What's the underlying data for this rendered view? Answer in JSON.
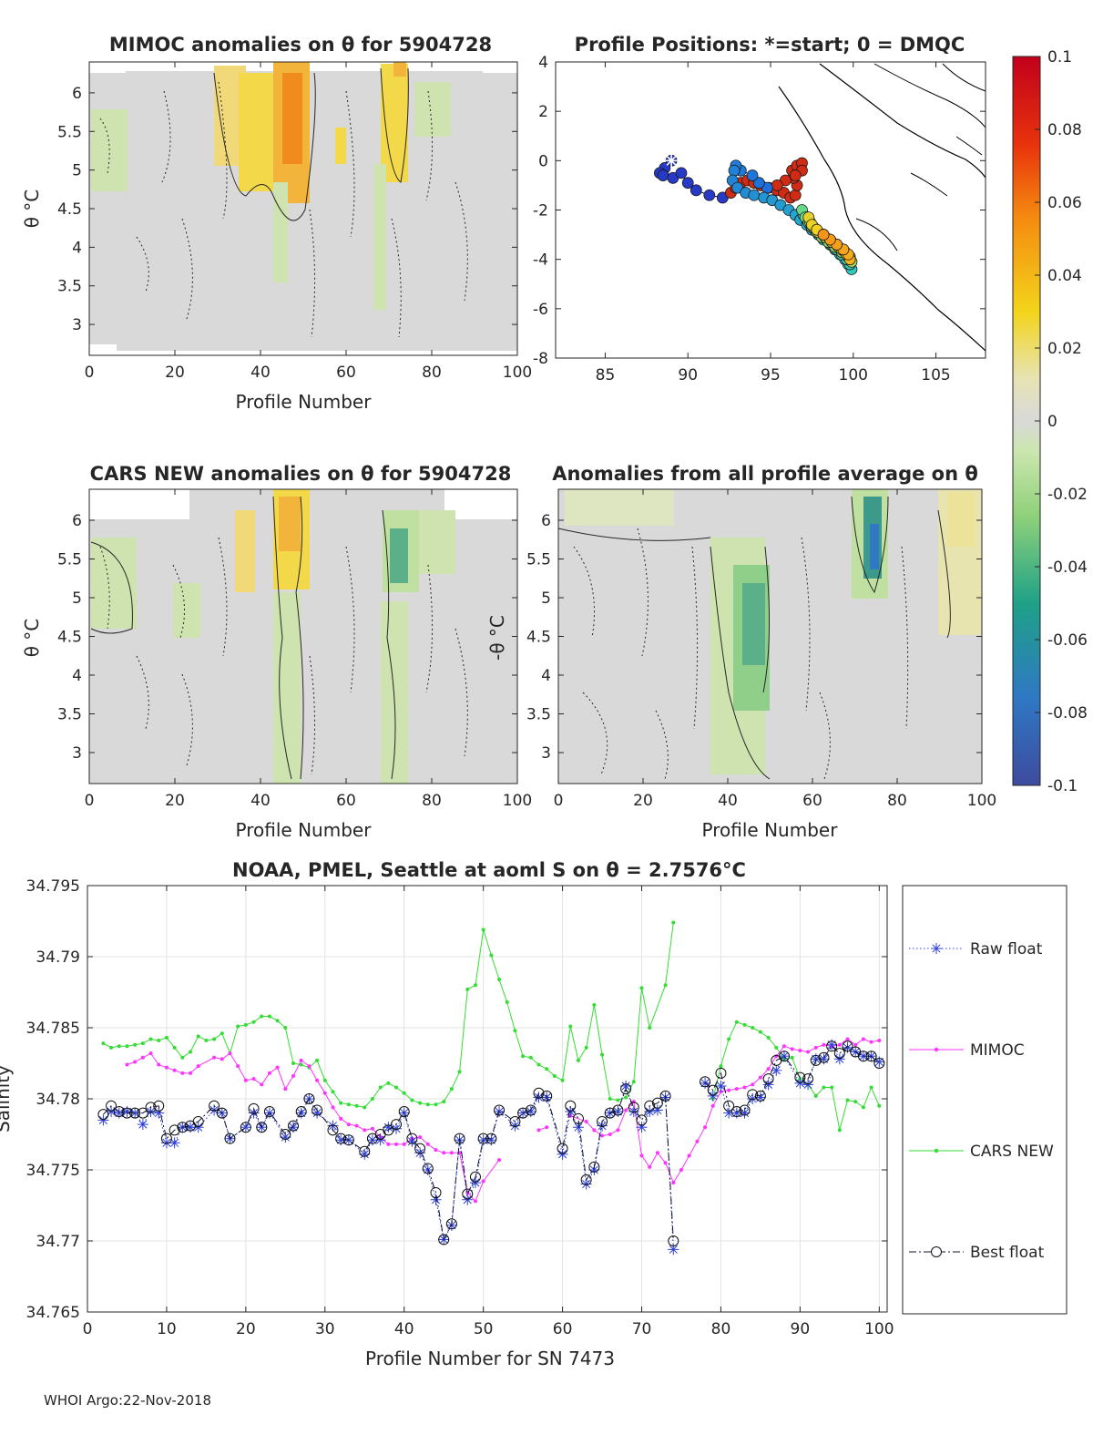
{
  "footer": "WHOI Argo:22-Nov-2018",
  "colorbar": {
    "ticks": [
      "0.1",
      "0.08",
      "0.06",
      "0.04",
      "0.02",
      "0",
      "-0.02",
      "-0.04",
      "-0.06",
      "-0.08",
      "-0.1"
    ],
    "range": [
      -0.1,
      0.1
    ]
  },
  "chart_data": [
    {
      "id": "mimoc",
      "type": "heatmap",
      "title": "MIMOC anomalies on θ  for 5904728",
      "xlabel": "Profile Number",
      "ylabel": "θ °C",
      "xlim": [
        0,
        100
      ],
      "ylim": [
        2.6,
        6.4
      ],
      "xticks": [
        "0",
        "20",
        "40",
        "60",
        "80",
        "100"
      ],
      "yticks": [
        "3",
        "3.5",
        "4",
        "4.5",
        "5",
        "5.5",
        "6"
      ]
    },
    {
      "id": "positions",
      "type": "scatter",
      "title": "Profile Positions: *=start; 0 = DMQC",
      "xlim": [
        82,
        108
      ],
      "ylim": [
        -8,
        4
      ],
      "xticks": [
        "85",
        "90",
        "95",
        "100",
        "105"
      ],
      "yticks": [
        "4",
        "2",
        "0",
        "-2",
        "-4",
        "-6",
        "-8"
      ],
      "lon": [
        89.0,
        88.6,
        88.3,
        88.5,
        89.1,
        89.6,
        90.0,
        90.5,
        91.3,
        92.1,
        92.6,
        92.9,
        93.2,
        93.6,
        94.0,
        94.4,
        94.9,
        95.4,
        95.8,
        96.2,
        96.5,
        96.6,
        96.4,
        96.3,
        96.6,
        96.9,
        96.9,
        96.5,
        95.9,
        95.4,
        94.8,
        94.3,
        93.9,
        93.2,
        92.9,
        92.8,
        92.7,
        93.0,
        93.5,
        94.0,
        94.6,
        95.1,
        95.6,
        96.1,
        96.5,
        96.8,
        97.2,
        97.5,
        97.9,
        98.2,
        98.6,
        98.9,
        99.2,
        99.5,
        99.7,
        99.9,
        99.8,
        99.6,
        99.3,
        99.0,
        98.7,
        98.4,
        98.1,
        97.7,
        97.4,
        97.2,
        97.0,
        96.9,
        97.1,
        97.3,
        97.5,
        97.8,
        98.1,
        98.5,
        98.9,
        99.3,
        99.7,
        99.9,
        99.8,
        99.5,
        99.1,
        98.7,
        98.3,
        97.9,
        97.6,
        97.4,
        97.3,
        97.5,
        97.8,
        98.2,
        98.6,
        99.0,
        99.3,
        99.6,
        99.8,
        99.7,
        99.4,
        99.0,
        98.6,
        98.2
      ],
      "lat": [
        0.0,
        -0.3,
        -0.5,
        -0.6,
        -0.7,
        -0.5,
        -0.9,
        -1.2,
        -1.4,
        -1.5,
        -1.3,
        -1.1,
        -0.9,
        -0.8,
        -0.9,
        -1.0,
        -1.1,
        -1.2,
        -1.3,
        -1.5,
        -1.4,
        -1.0,
        -0.7,
        -0.4,
        -0.2,
        -0.1,
        -0.4,
        -0.6,
        -0.8,
        -1.0,
        -1.1,
        -0.9,
        -0.6,
        -0.4,
        -0.2,
        -0.4,
        -0.8,
        -1.1,
        -1.3,
        -1.4,
        -1.5,
        -1.6,
        -1.8,
        -2.0,
        -2.2,
        -2.4,
        -2.6,
        -2.8,
        -3.0,
        -3.2,
        -3.4,
        -3.6,
        -3.8,
        -4.0,
        -4.2,
        -4.4,
        -4.2,
        -4.0,
        -3.8,
        -3.6,
        -3.4,
        -3.2,
        -3.0,
        -2.8,
        -2.6,
        -2.4,
        -2.2,
        -2.0,
        -2.3,
        -2.5,
        -2.7,
        -2.9,
        -3.1,
        -3.3,
        -3.5,
        -3.7,
        -3.9,
        -4.1,
        -3.9,
        -3.7,
        -3.5,
        -3.3,
        -3.1,
        -2.9,
        -2.7,
        -2.5,
        -2.3,
        -2.6,
        -2.8,
        -3.0,
        -3.2,
        -3.4,
        -3.6,
        -3.8,
        -4.0,
        -3.8,
        -3.6,
        -3.4,
        -3.2,
        -3.0
      ]
    },
    {
      "id": "cars",
      "type": "heatmap",
      "title": "CARS NEW anomalies on θ for 5904728",
      "xlabel": "Profile Number",
      "ylabel": "θ °C",
      "xlim": [
        0,
        100
      ],
      "ylim": [
        2.6,
        6.4
      ],
      "xticks": [
        "0",
        "20",
        "40",
        "60",
        "80",
        "100"
      ],
      "yticks": [
        "3",
        "3.5",
        "4",
        "4.5",
        "5",
        "5.5",
        "6"
      ]
    },
    {
      "id": "allavg",
      "type": "heatmap",
      "title": "Anomalies from all profile average on θ",
      "xlabel": "Profile Number",
      "ylabel": "-θ °C",
      "xlim": [
        0,
        100
      ],
      "ylim": [
        2.6,
        6.4
      ],
      "xticks": [
        "0",
        "20",
        "40",
        "60",
        "80",
        "100"
      ],
      "yticks": [
        "3",
        "3.5",
        "4",
        "4.5",
        "5",
        "5.5",
        "6"
      ]
    },
    {
      "id": "salinity",
      "type": "line",
      "title": "NOAA, PMEL, Seattle at aoml S on θ = 2.7576°C",
      "xlabel": "Profile Number for SN 7473",
      "ylabel": "Salinity",
      "xlim": [
        0,
        101
      ],
      "ylim": [
        34.765,
        34.795
      ],
      "xticks": [
        "0",
        "10",
        "20",
        "30",
        "40",
        "50",
        "60",
        "70",
        "80",
        "90",
        "100"
      ],
      "yticks": [
        "34.765",
        "34.77",
        "34.775",
        "34.78",
        "34.785",
        "34.79",
        "34.795"
      ],
      "series": [
        {
          "name": "Raw float",
          "x": [
            2,
            3,
            4,
            5,
            6,
            7,
            8,
            9,
            10,
            11,
            12,
            13,
            14,
            16,
            17,
            18,
            20,
            21,
            22,
            23,
            25,
            26,
            27,
            28,
            29,
            31,
            32,
            33,
            35,
            36,
            37,
            38,
            39,
            40,
            41,
            42,
            43,
            44,
            45,
            46,
            47,
            48,
            49,
            50,
            51,
            52,
            54,
            55,
            56,
            57,
            58,
            60,
            61,
            62,
            63,
            64,
            65,
            66,
            67,
            68,
            69,
            70,
            71,
            72,
            73,
            74,
            78,
            79,
            80,
            81,
            82,
            83,
            84,
            85,
            86,
            87,
            88,
            90,
            91,
            92,
            93,
            94,
            95,
            96,
            97,
            98,
            99,
            100
          ],
          "y": [
            34.7785,
            34.7791,
            34.779,
            34.7791,
            34.779,
            34.7782,
            34.7791,
            34.779,
            34.7769,
            34.7769,
            34.778,
            34.778,
            34.778,
            34.7792,
            34.779,
            34.7772,
            34.778,
            34.779,
            34.778,
            34.779,
            34.7773,
            34.778,
            34.779,
            34.78,
            34.779,
            34.7781,
            34.7771,
            34.7771,
            34.7761,
            34.7771,
            34.7771,
            34.778,
            34.7779,
            34.779,
            34.777,
            34.7762,
            34.775,
            34.7729,
            34.7701,
            34.7711,
            34.7771,
            34.7729,
            34.7741,
            34.7771,
            34.7771,
            34.7791,
            34.7781,
            34.779,
            34.7791,
            34.7801,
            34.7801,
            34.7761,
            34.7791,
            34.778,
            34.774,
            34.775,
            34.7781,
            34.779,
            34.7791,
            34.7809,
            34.7791,
            34.778,
            34.7791,
            34.7792,
            34.7801,
            34.7694,
            34.7811,
            34.7802,
            34.7809,
            34.779,
            34.779,
            34.779,
            34.78,
            34.7801,
            34.781,
            34.782,
            34.783,
            34.7811,
            34.781,
            34.7828,
            34.7828,
            34.7838,
            34.7828,
            34.7836,
            34.7833,
            34.783,
            34.783,
            34.7826
          ]
        },
        {
          "name": "MIMOC",
          "x": [
            5,
            6,
            7,
            8,
            9,
            10,
            11,
            12,
            13,
            14,
            16,
            17,
            18,
            19,
            20,
            21,
            22,
            23,
            24,
            25,
            26,
            27,
            28,
            29,
            30,
            31,
            32,
            33,
            34,
            35,
            36,
            37,
            38,
            39,
            40,
            41,
            42,
            43,
            44,
            45,
            46,
            47,
            48,
            49,
            50,
            52,
            57,
            58,
            61,
            63,
            64,
            65,
            66,
            67,
            68,
            69,
            70,
            71,
            72,
            73,
            74,
            75,
            76,
            77,
            78,
            79,
            80,
            81,
            82,
            83,
            84,
            85,
            86,
            87,
            88,
            89,
            90,
            91,
            92,
            93,
            94,
            95,
            96,
            97,
            98,
            99,
            100
          ],
          "y": [
            34.7824,
            34.7826,
            34.7829,
            34.7832,
            34.7824,
            34.7822,
            34.782,
            34.7818,
            34.7818,
            34.7823,
            34.7829,
            34.7828,
            34.7832,
            34.7823,
            34.7813,
            34.7814,
            34.781,
            34.7818,
            34.7822,
            34.7807,
            34.7816,
            34.7827,
            34.7823,
            34.7813,
            34.7804,
            34.7794,
            34.7786,
            34.7782,
            34.7781,
            34.7778,
            34.7779,
            34.7773,
            34.7768,
            34.7768,
            34.7768,
            34.7772,
            34.7773,
            34.7768,
            34.7764,
            34.7762,
            34.7762,
            34.7762,
            34.7734,
            34.7728,
            34.7742,
            34.7757,
            34.7778,
            34.778,
            34.7788,
            34.7784,
            34.7778,
            34.7774,
            34.7775,
            34.7778,
            34.7792,
            34.7798,
            34.776,
            34.7752,
            34.7762,
            34.7755,
            34.7741,
            34.775,
            34.776,
            34.777,
            34.778,
            34.7795,
            34.7805,
            34.7806,
            34.7807,
            34.7808,
            34.781,
            34.7815,
            34.7821,
            34.783,
            34.7837,
            34.7835,
            34.7834,
            34.7833,
            34.7836,
            34.7838,
            34.7837,
            34.7838,
            34.7842,
            34.7838,
            34.7842,
            34.784,
            34.7841
          ]
        },
        {
          "name": "CARS NEW",
          "x": [
            2,
            3,
            4,
            5,
            6,
            7,
            8,
            9,
            10,
            11,
            12,
            13,
            14,
            15,
            16,
            17,
            18,
            19,
            20,
            21,
            22,
            23,
            24,
            25,
            26,
            27,
            28,
            29,
            30,
            31,
            32,
            33,
            34,
            35,
            36,
            37,
            38,
            39,
            40,
            41,
            42,
            43,
            44,
            45,
            46,
            47,
            48,
            49,
            50,
            51,
            52,
            53,
            54,
            55,
            56,
            57,
            58,
            59,
            60,
            61,
            62,
            63,
            64,
            65,
            66,
            67,
            68,
            69,
            70,
            71,
            73,
            74,
            79,
            80,
            81,
            82,
            83,
            84,
            85,
            86,
            87,
            88,
            89,
            90,
            91,
            92,
            93,
            94,
            95,
            96,
            97,
            98,
            99,
            100
          ],
          "y": [
            34.7839,
            34.7836,
            34.7837,
            34.7837,
            34.7838,
            34.7839,
            34.7842,
            34.7841,
            34.7843,
            34.7836,
            34.7829,
            34.7833,
            34.7844,
            34.7841,
            34.7842,
            34.7846,
            34.7832,
            34.7851,
            34.7852,
            34.7854,
            34.7858,
            34.7858,
            34.7855,
            34.785,
            34.7825,
            34.7824,
            34.7822,
            34.7827,
            34.7813,
            34.7805,
            34.7797,
            34.7796,
            34.7795,
            34.7794,
            34.78,
            34.7808,
            34.7811,
            34.7808,
            34.7804,
            34.7799,
            34.7797,
            34.7796,
            34.7796,
            34.7798,
            34.7807,
            34.7819,
            34.7877,
            34.788,
            34.7919,
            34.7901,
            34.7884,
            34.7868,
            34.7848,
            34.783,
            34.7829,
            34.7824,
            34.7821,
            34.7816,
            34.7813,
            34.7851,
            34.7827,
            34.7836,
            34.7866,
            34.7831,
            34.78,
            34.7799,
            34.7801,
            34.7812,
            34.7878,
            34.785,
            34.788,
            34.7924,
            34.78,
            34.7823,
            34.7842,
            34.7854,
            34.7852,
            34.785,
            34.7847,
            34.7843,
            34.7836,
            34.7828,
            34.7829,
            34.7814,
            34.781,
            34.7802,
            34.7808,
            34.7808,
            34.7778,
            34.7799,
            34.7798,
            34.7794,
            34.7808,
            34.7795
          ]
        },
        {
          "name": "Best float",
          "x": [
            2,
            3,
            4,
            5,
            6,
            7,
            8,
            9,
            10,
            11,
            12,
            13,
            14,
            16,
            17,
            18,
            20,
            21,
            22,
            23,
            25,
            26,
            27,
            28,
            29,
            31,
            32,
            33,
            35,
            36,
            37,
            38,
            39,
            40,
            41,
            42,
            43,
            44,
            45,
            46,
            47,
            48,
            49,
            50,
            51,
            52,
            54,
            55,
            56,
            57,
            58,
            60,
            61,
            62,
            63,
            64,
            65,
            66,
            67,
            68,
            69,
            70,
            71,
            72,
            73,
            74,
            78,
            79,
            80,
            81,
            82,
            83,
            84,
            85,
            86,
            87,
            88,
            90,
            91,
            92,
            93,
            94,
            95,
            96,
            97,
            98,
            99,
            100
          ],
          "y": [
            34.7789,
            34.7795,
            34.7791,
            34.779,
            34.779,
            34.779,
            34.7794,
            34.7795,
            34.7772,
            34.7778,
            34.778,
            34.7781,
            34.7784,
            34.7795,
            34.779,
            34.7772,
            34.778,
            34.7793,
            34.778,
            34.7791,
            34.7775,
            34.7781,
            34.7791,
            34.78,
            34.7792,
            34.7778,
            34.7772,
            34.7771,
            34.7763,
            34.7772,
            34.7775,
            34.7778,
            34.7782,
            34.7791,
            34.7772,
            34.7765,
            34.7751,
            34.7734,
            34.7701,
            34.7712,
            34.7772,
            34.7733,
            34.7745,
            34.7772,
            34.7772,
            34.7792,
            34.7784,
            34.779,
            34.7792,
            34.7804,
            34.7802,
            34.7765,
            34.7795,
            34.7786,
            34.7743,
            34.7752,
            34.7784,
            34.779,
            34.7792,
            34.7807,
            34.7794,
            34.7785,
            34.7795,
            34.7797,
            34.7802,
            34.77,
            34.7812,
            34.7806,
            34.7818,
            34.7795,
            34.7791,
            34.7792,
            34.7803,
            34.7802,
            34.7814,
            34.7827,
            34.783,
            34.7815,
            34.7814,
            34.7827,
            34.7829,
            34.7837,
            34.7832,
            34.7837,
            34.7833,
            34.783,
            34.783,
            34.7825
          ]
        }
      ]
    }
  ]
}
